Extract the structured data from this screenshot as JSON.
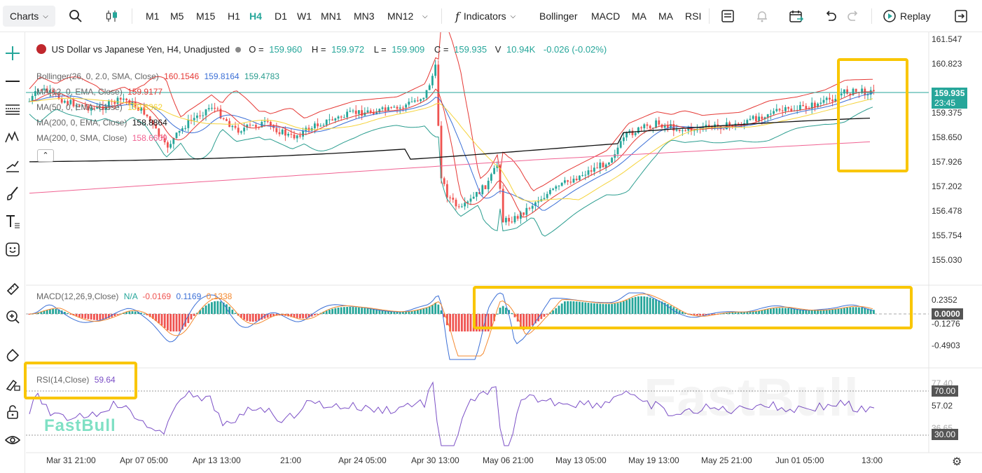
{
  "toolbar": {
    "charts_label": "Charts",
    "timeframes": [
      "M1",
      "M5",
      "M15",
      "H1",
      "H4",
      "D1",
      "W1",
      "MN1",
      "MN3",
      "MN12"
    ],
    "active_timeframe": "H4",
    "indicators_label": "Indicators",
    "indicator_shortcuts": [
      "Bollinger",
      "MACD",
      "MA",
      "MA",
      "RSI"
    ],
    "replay_label": "Replay"
  },
  "symbol": {
    "title": "US Dollar vs Japanese Yen, H4, Unadjusted",
    "open_label": "O =",
    "open": "159.960",
    "high_label": "H =",
    "high": "159.972",
    "low_label": "L =",
    "low": "159.909",
    "close_label": "C =",
    "close": "159.935",
    "volume_label": "V",
    "volume": "10.94K",
    "change": "-0.026 (-0.02%)"
  },
  "indicators": {
    "bollinger": {
      "label": "Bollinger(26, 0, 2.0, SMA, Close)",
      "v1": "160.1546",
      "v2": "159.8164",
      "v3": "159.4783"
    },
    "ma1": {
      "label": "MA(12, 0, EMA, Close)",
      "value": "159.9177"
    },
    "ma2": {
      "label": "MA(50, 0, EMA, Close)",
      "value": "159.6362"
    },
    "ma3": {
      "label": "MA(200, 0, EMA, Close)",
      "value": "158.8864"
    },
    "ma4": {
      "label": "MA(200, 0, SMA, Close)",
      "value": "158.6609"
    },
    "macd": {
      "label": "MACD(12,26,9,Close)",
      "na": "N/A",
      "v1": "-0.0169",
      "v2": "0.1169",
      "v3": "0.1338"
    },
    "rsi": {
      "label": "RSI(14,Close)",
      "value": "59.64"
    }
  },
  "price_axis": [
    "161.547",
    "160.823",
    "159.375",
    "158.650",
    "157.926",
    "157.202",
    "156.478",
    "155.754",
    "155.030"
  ],
  "current_price_tag": {
    "price": "159.935",
    "countdown": "23:45"
  },
  "macd_axis": [
    "0.2352",
    "-0.1276",
    "-0.4903"
  ],
  "macd_zero_tag": "0.0000",
  "rsi_axis": [
    "77.40",
    "57.02",
    "36.65"
  ],
  "rsi_tags": [
    "70.00",
    "30.00"
  ],
  "time_axis": [
    "Mar 31 21:00",
    "Apr 07 05:00",
    "Apr 13 13:00",
    "21:00",
    "Apr 24 05:00",
    "Apr 30 13:00",
    "May 06 21:00",
    "May 13 05:00",
    "May 19 13:00",
    "May 25 21:00",
    "Jun 01 05:00",
    "13:00"
  ],
  "watermark": "FastBull",
  "colors": {
    "up": "#26a69a",
    "down": "#ef5350",
    "bb_upper": "#e53935",
    "bb_mid": "#3b6fd6",
    "bb_lower": "#2a9d8f",
    "ema12": "#e53935",
    "ema50": "#f5d33b",
    "ema200": "#111111",
    "sma200": "#f06292",
    "macd_line": "#3b6fd6",
    "signal_line": "#f4892f",
    "rsi_line": "#7b4fc6",
    "highlight": "#f9c600",
    "accent": "#26a69a"
  }
}
